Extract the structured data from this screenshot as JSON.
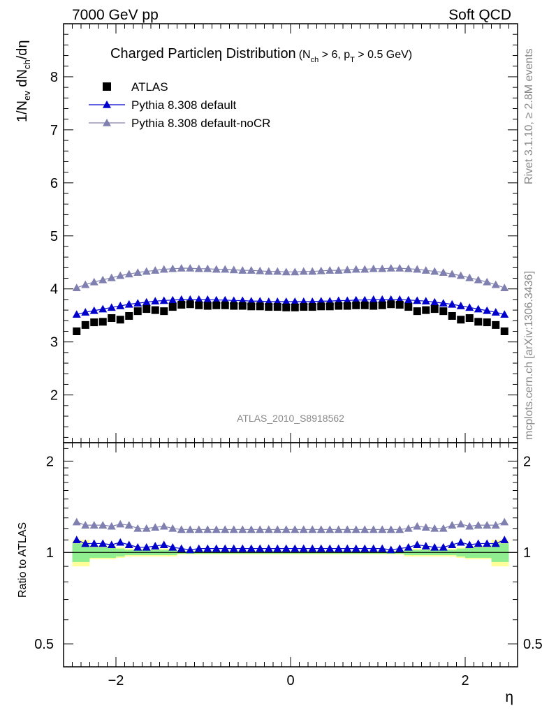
{
  "header": {
    "left": "7000 GeV pp",
    "right": "Soft QCD"
  },
  "side": {
    "rivet": "Rivet 3.1.10, ≥ 2.8M events",
    "mcplots": "mcplots.cern.ch [arXiv:1306.3436]"
  },
  "chart_data": {
    "type": "scatter",
    "title": {
      "main": "Charged Particleη Distribution",
      "sel_a": "(N",
      "sel_a_sub": "ch",
      "sel_b": " > 6, p",
      "sel_b_sub": "T",
      "sel_c": " > 0.5 GeV)"
    },
    "analysis_label": "ATLAS_2010_S8918562",
    "xlabel": "η",
    "ylabel": {
      "p1": "1/N",
      "s1": "ev",
      "p2": " dN",
      "s2": "ch",
      "p3": "/dη"
    },
    "ratio_ylabel": "Ratio to ATLAS",
    "xlim": [
      -2.6,
      2.6
    ],
    "ylim_main": [
      1.1,
      9.0
    ],
    "ylim_ratio": [
      0.42,
      2.3
    ],
    "ratio_log_scale": true,
    "x_ticks": [
      -2,
      0,
      2
    ],
    "x_tick_labels": [
      "−2",
      "0",
      "2"
    ],
    "main_y_ticks": [
      2,
      3,
      4,
      5,
      6,
      7,
      8
    ],
    "ratio_y_ticks": [
      0.5,
      1,
      2
    ],
    "ratio_y_tick_labels": [
      "0.5",
      "1",
      "2"
    ],
    "legend_position": "top-left",
    "legend": [
      {
        "name": "ATLAS",
        "marker": "square",
        "color": "#000000"
      },
      {
        "name": "Pythia 8.308 default",
        "marker": "triangle",
        "color": "#0000cc"
      },
      {
        "name": "Pythia 8.308 default-noCR",
        "marker": "triangle",
        "color": "#8080b0"
      }
    ],
    "x": [
      -2.45,
      -2.35,
      -2.25,
      -2.15,
      -2.05,
      -1.95,
      -1.85,
      -1.75,
      -1.65,
      -1.55,
      -1.45,
      -1.35,
      -1.25,
      -1.15,
      -1.05,
      -0.95,
      -0.85,
      -0.75,
      -0.65,
      -0.55,
      -0.45,
      -0.35,
      -0.25,
      -0.15,
      -0.05,
      0.05,
      0.15,
      0.25,
      0.35,
      0.45,
      0.55,
      0.65,
      0.75,
      0.85,
      0.95,
      1.05,
      1.15,
      1.25,
      1.35,
      1.45,
      1.55,
      1.65,
      1.75,
      1.85,
      1.95,
      2.05,
      2.15,
      2.25,
      2.35,
      2.45
    ],
    "series": [
      {
        "name": "ATLAS",
        "color": "#000000",
        "values": [
          3.2,
          3.32,
          3.37,
          3.38,
          3.45,
          3.42,
          3.49,
          3.58,
          3.62,
          3.6,
          3.58,
          3.66,
          3.7,
          3.71,
          3.69,
          3.68,
          3.69,
          3.69,
          3.68,
          3.68,
          3.67,
          3.67,
          3.66,
          3.66,
          3.65,
          3.65,
          3.66,
          3.66,
          3.67,
          3.67,
          3.68,
          3.68,
          3.69,
          3.69,
          3.68,
          3.69,
          3.71,
          3.7,
          3.66,
          3.58,
          3.6,
          3.62,
          3.58,
          3.49,
          3.42,
          3.45,
          3.38,
          3.37,
          3.32,
          3.2
        ]
      },
      {
        "name": "Pythia 8.308 default",
        "color": "#0000cc",
        "values": [
          3.52,
          3.56,
          3.59,
          3.62,
          3.65,
          3.68,
          3.71,
          3.73,
          3.75,
          3.77,
          3.78,
          3.79,
          3.8,
          3.8,
          3.8,
          3.8,
          3.79,
          3.79,
          3.78,
          3.78,
          3.77,
          3.77,
          3.76,
          3.76,
          3.76,
          3.76,
          3.76,
          3.76,
          3.77,
          3.77,
          3.78,
          3.78,
          3.79,
          3.79,
          3.8,
          3.8,
          3.8,
          3.8,
          3.79,
          3.78,
          3.77,
          3.75,
          3.73,
          3.71,
          3.68,
          3.65,
          3.62,
          3.59,
          3.56,
          3.52
        ]
      },
      {
        "name": "Pythia 8.308 default-noCR",
        "color": "#8080b0",
        "values": [
          4.02,
          4.08,
          4.13,
          4.17,
          4.21,
          4.25,
          4.28,
          4.31,
          4.33,
          4.35,
          4.37,
          4.38,
          4.39,
          4.39,
          4.38,
          4.38,
          4.37,
          4.37,
          4.36,
          4.35,
          4.35,
          4.34,
          4.33,
          4.33,
          4.32,
          4.32,
          4.33,
          4.33,
          4.34,
          4.35,
          4.35,
          4.36,
          4.37,
          4.37,
          4.38,
          4.38,
          4.39,
          4.39,
          4.38,
          4.37,
          4.35,
          4.33,
          4.31,
          4.28,
          4.25,
          4.21,
          4.17,
          4.13,
          4.08,
          4.02
        ]
      }
    ],
    "ratio_series": [
      {
        "name": "Pythia 8.308 default",
        "values": [
          1.1,
          1.07,
          1.07,
          1.07,
          1.06,
          1.08,
          1.06,
          1.04,
          1.04,
          1.05,
          1.06,
          1.04,
          1.03,
          1.02,
          1.03,
          1.03,
          1.03,
          1.03,
          1.03,
          1.03,
          1.03,
          1.03,
          1.03,
          1.03,
          1.03,
          1.03,
          1.03,
          1.03,
          1.03,
          1.03,
          1.03,
          1.03,
          1.03,
          1.03,
          1.03,
          1.03,
          1.02,
          1.03,
          1.04,
          1.06,
          1.05,
          1.04,
          1.04,
          1.06,
          1.08,
          1.06,
          1.07,
          1.07,
          1.07,
          1.1
        ]
      },
      {
        "name": "Pythia 8.308 default-noCR",
        "values": [
          1.26,
          1.23,
          1.23,
          1.23,
          1.22,
          1.24,
          1.23,
          1.2,
          1.2,
          1.21,
          1.22,
          1.2,
          1.19,
          1.19,
          1.19,
          1.19,
          1.19,
          1.19,
          1.19,
          1.19,
          1.19,
          1.19,
          1.19,
          1.19,
          1.19,
          1.19,
          1.19,
          1.19,
          1.19,
          1.19,
          1.19,
          1.19,
          1.19,
          1.19,
          1.19,
          1.19,
          1.19,
          1.19,
          1.2,
          1.22,
          1.21,
          1.2,
          1.2,
          1.23,
          1.24,
          1.22,
          1.23,
          1.23,
          1.23,
          1.26
        ]
      }
    ],
    "uncertainty_bands": {
      "edges": [
        -2.5,
        -2.3,
        -2.0,
        -1.9,
        -1.3,
        1.3,
        1.9,
        2.0,
        2.3,
        2.5
      ],
      "inner_color": "#90ee90",
      "outer_color": "#ffff99",
      "inner_lo": [
        0.93,
        0.96,
        0.97,
        0.98,
        0.99,
        0.98,
        0.97,
        0.96,
        0.93
      ],
      "inner_hi": [
        1.07,
        1.04,
        1.03,
        1.02,
        1.01,
        1.02,
        1.03,
        1.04,
        1.07
      ],
      "outer_lo": [
        0.9,
        0.95,
        0.96,
        0.97,
        0.985,
        0.97,
        0.96,
        0.95,
        0.9
      ],
      "outer_hi": [
        1.1,
        1.05,
        1.04,
        1.03,
        1.015,
        1.03,
        1.04,
        1.05,
        1.1
      ]
    }
  }
}
